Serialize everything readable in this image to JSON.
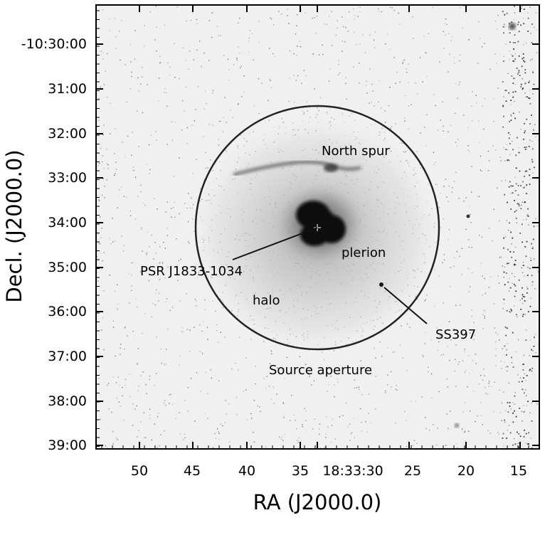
{
  "xaxis": {
    "title": "RA (J2000.0)",
    "ticks": [
      "50",
      "45",
      "40",
      "35",
      "18:33:30",
      "25",
      "20",
      "15"
    ]
  },
  "yaxis": {
    "title": "Decl. (J2000.0)",
    "ticks": [
      "-10:30:00",
      "31:00",
      "32:00",
      "33:00",
      "34:00",
      "35:00",
      "36:00",
      "37:00",
      "38:00",
      "39:00"
    ]
  },
  "annotations": {
    "north_spur": "North spur",
    "plerion": "plerion",
    "pulsar": "PSR J1833-1034",
    "halo": "halo",
    "ss397": "SS397",
    "aperture": "Source aperture"
  },
  "colors": {
    "frame": "#000000",
    "background": "#f2f2f2",
    "core": "#0d0d0d",
    "noise": "#9a9a9a"
  }
}
